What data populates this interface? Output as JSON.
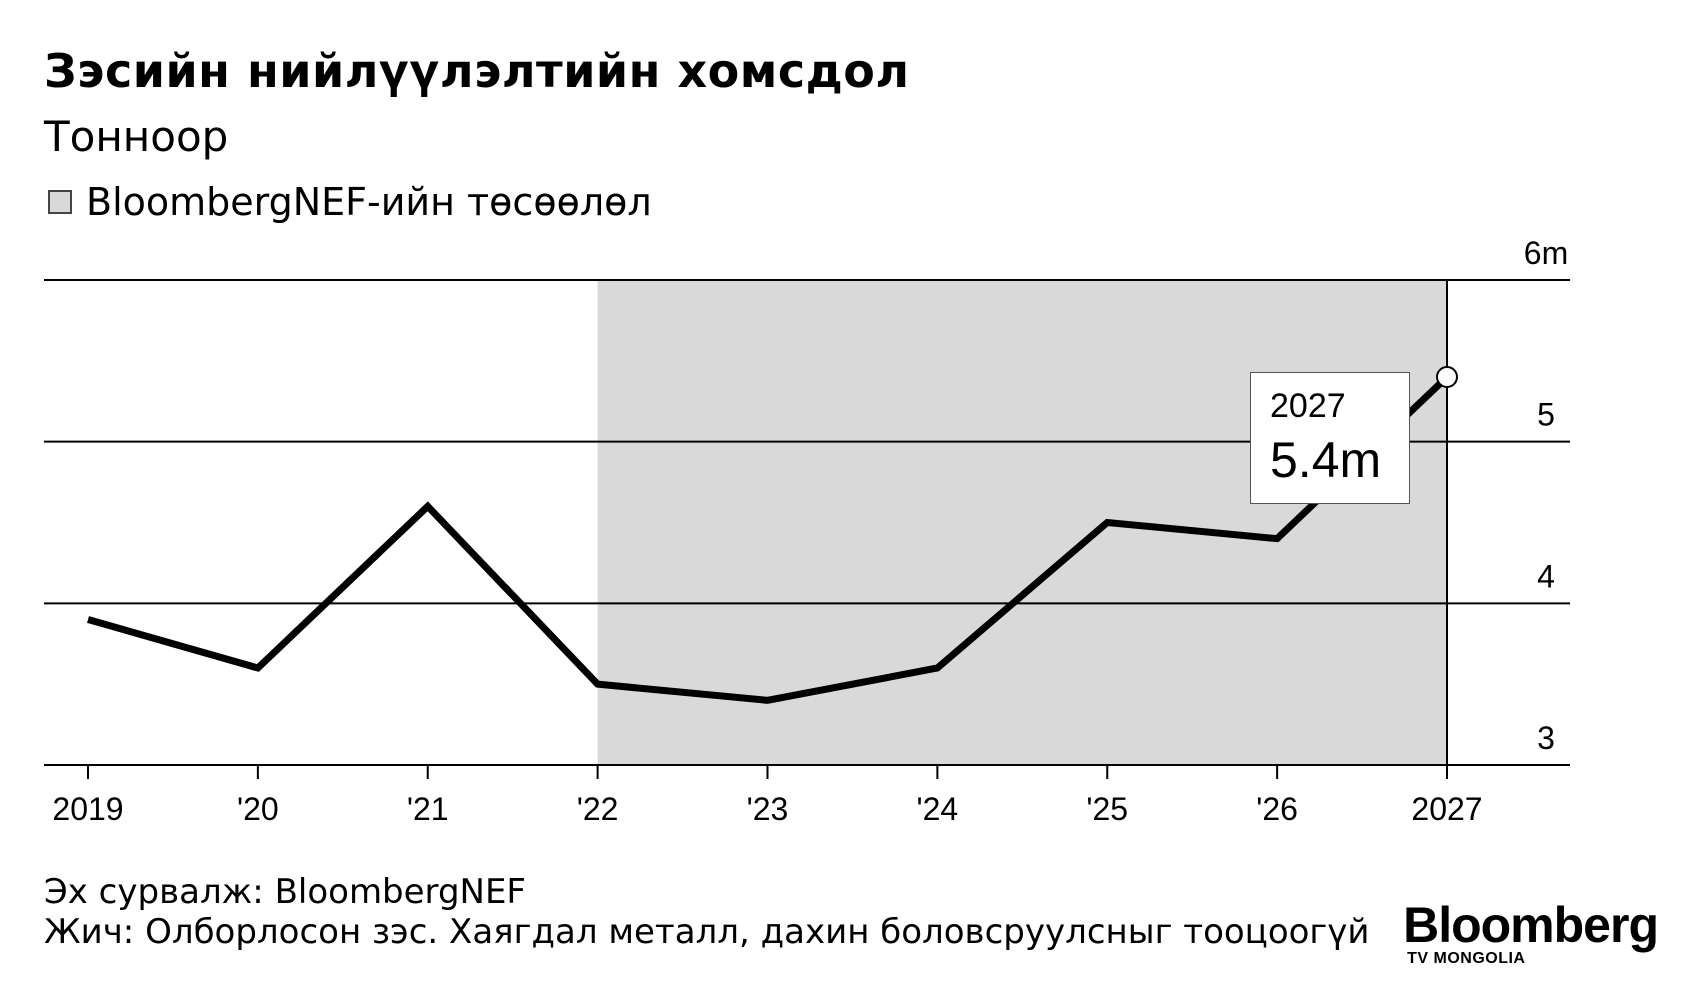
{
  "header": {
    "title": "Зэсийн нийлүүлэлтийн хомсдол",
    "subtitle": "Тонноор",
    "legend_label": "BloombergNEF-ийн төсөөлөл"
  },
  "chart_data": {
    "type": "line",
    "x": [
      "2019",
      "'20",
      "'21",
      "'22",
      "'23",
      "'24",
      "'25",
      "'26",
      "2027"
    ],
    "series": [
      {
        "values": [
          3.9,
          3.6,
          4.6,
          3.5,
          3.4,
          3.6,
          4.5,
          4.4,
          5.4
        ]
      }
    ],
    "ylim": [
      3,
      6
    ],
    "yticks": [
      3,
      4,
      5,
      6
    ],
    "ytick_labels": [
      "3",
      "4",
      "5",
      "6m"
    ],
    "grid": true,
    "forecast_shading": {
      "from": "'22",
      "to": "2027",
      "label": "BloombergNEF-ийн төсөөлөл",
      "color": "#d9d9d9"
    },
    "annotation": {
      "x": "2027",
      "year_label": "2027",
      "value_label": "5.4m"
    }
  },
  "footer": {
    "source": "Эх сурвалж: BloombergNEF",
    "note": "Жич: Олборлосон зэс. Хаягдал металл, дахин боловсруулсныг тооцоогүй"
  },
  "brand": {
    "name": "Bloomberg",
    "sub": "TV MONGOLIA"
  }
}
